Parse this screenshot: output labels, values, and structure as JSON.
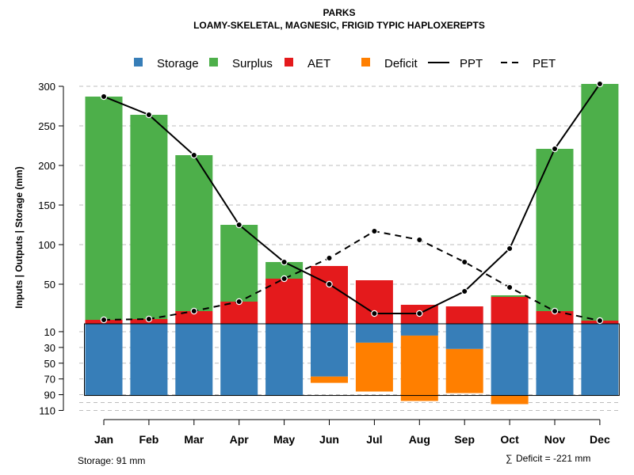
{
  "chart_data": {
    "type": "bar",
    "title": "PARKS",
    "subtitle": "LOAMY-SKELETAL, MAGNESIC, FRIGID TYPIC HAPLOXEREPTS",
    "ylabel": "Inputs | Outputs | Storage    (mm)",
    "categories": [
      "Jan",
      "Feb",
      "Mar",
      "Apr",
      "May",
      "Jun",
      "Jul",
      "Aug",
      "Sep",
      "Oct",
      "Nov",
      "Dec"
    ],
    "ylim_top": [
      0,
      300
    ],
    "ylim_bottom": [
      0,
      110
    ],
    "yticks_top": [
      300,
      250,
      200,
      150,
      100,
      50
    ],
    "yticks_bottom": [
      10,
      30,
      50,
      70,
      90,
      110
    ],
    "legend_position": "top",
    "legend": [
      {
        "label": "Storage",
        "kind": "box",
        "color": "#377EB8"
      },
      {
        "label": "Surplus",
        "kind": "box",
        "color": "#4DAF4A"
      },
      {
        "label": "AET",
        "kind": "box",
        "color": "#E41A1C"
      },
      {
        "label": "Deficit",
        "kind": "box",
        "color": "#FF7F00"
      },
      {
        "label": "PPT",
        "kind": "solid-line",
        "color": "#000000"
      },
      {
        "label": "PET",
        "kind": "dashed-line",
        "color": "#000000"
      }
    ],
    "colors": {
      "storage": "#377EB8",
      "surplus": "#4DAF4A",
      "aet": "#E41A1C",
      "deficit": "#FF7F00",
      "line": "#000000"
    },
    "series_above": [
      {
        "name": "AET",
        "values": [
          5,
          6,
          16,
          28,
          57,
          73,
          55,
          24,
          22,
          34,
          16,
          4
        ]
      },
      {
        "name": "Surplus",
        "values": [
          282,
          258,
          197,
          97,
          21,
          0,
          0,
          0,
          0,
          2,
          205,
          299
        ]
      }
    ],
    "lines": [
      {
        "name": "PPT",
        "style": "solid",
        "values": [
          287,
          264,
          213,
          125,
          78,
          50,
          13,
          13,
          41,
          95,
          221,
          303
        ]
      },
      {
        "name": "PET",
        "style": "dashed",
        "values": [
          5,
          6,
          16,
          28,
          57,
          83,
          117,
          106,
          78,
          46,
          16,
          4
        ]
      }
    ],
    "series_below": [
      {
        "name": "Storage",
        "values": [
          91,
          91,
          91,
          91,
          91,
          67,
          24,
          15,
          32,
          91,
          91,
          91
        ]
      },
      {
        "name": "Deficit",
        "start": [
          0,
          0,
          0,
          0,
          0,
          67,
          24,
          15,
          32,
          91,
          0,
          0
        ],
        "values": [
          0,
          0,
          0,
          0,
          0,
          8,
          62,
          83,
          56,
          11,
          0,
          0
        ]
      }
    ],
    "storage_capacity": 91,
    "annotations": {
      "storage": "Storage: 91 mm",
      "deficit_symbol": "∑",
      "deficit": "Deficit = -221 mm"
    }
  }
}
